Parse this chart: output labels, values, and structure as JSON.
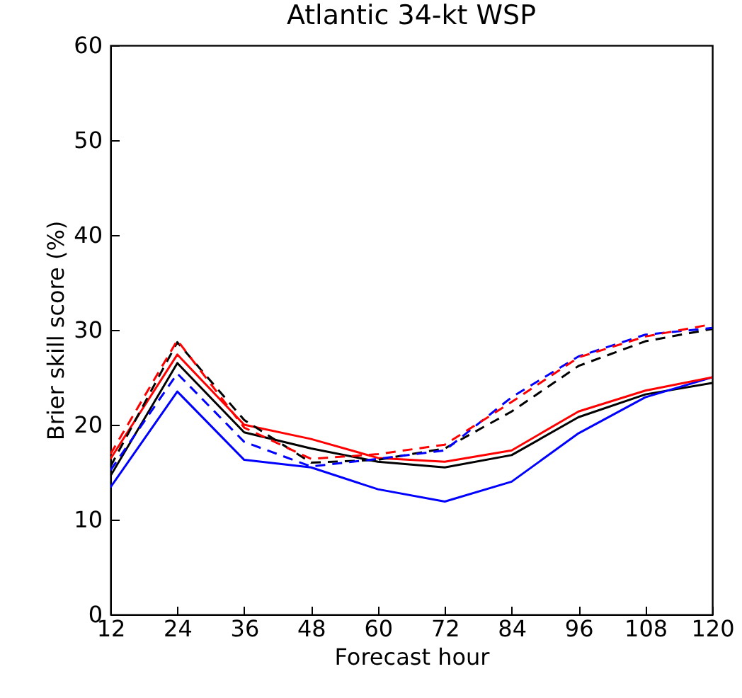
{
  "chart_data": {
    "type": "line",
    "title": "Atlantic 34-kt WSP",
    "xlabel": "Forecast hour",
    "ylabel": "Brier skill score (%)",
    "x": [
      12,
      24,
      36,
      48,
      60,
      72,
      84,
      96,
      108,
      120
    ],
    "series": [
      {
        "color": "#000000",
        "line_style": "solid",
        "values": [
          14.6,
          26.5,
          19.2,
          17.5,
          16.1,
          15.5,
          16.8,
          20.8,
          23.2,
          24.4
        ]
      },
      {
        "color": "#0000ff",
        "line_style": "solid",
        "values": [
          13.4,
          23.5,
          16.3,
          15.5,
          13.2,
          11.9,
          14.0,
          19.1,
          22.9,
          25.0
        ]
      },
      {
        "color": "#ff0000",
        "line_style": "solid",
        "values": [
          16.4,
          27.4,
          20.0,
          18.5,
          16.5,
          16.1,
          17.3,
          21.4,
          23.6,
          25.0
        ]
      },
      {
        "color": "#000000",
        "line_style": "dashed",
        "values": [
          15.6,
          28.7,
          20.5,
          16.0,
          16.3,
          17.5,
          21.4,
          26.2,
          28.8,
          30.1
        ]
      },
      {
        "color": "#0000ff",
        "line_style": "dashed",
        "values": [
          15.2,
          25.4,
          18.2,
          15.6,
          16.4,
          17.3,
          22.9,
          27.2,
          29.5,
          30.2
        ]
      },
      {
        "color": "#ff0000",
        "line_style": "dashed",
        "values": [
          16.9,
          28.9,
          19.7,
          16.4,
          16.9,
          17.9,
          22.4,
          27.1,
          29.3,
          30.6
        ]
      }
    ],
    "xlim": [
      12,
      120
    ],
    "ylim": [
      0,
      60
    ],
    "xticks": [
      12,
      24,
      36,
      48,
      60,
      72,
      84,
      96,
      108,
      120
    ],
    "yticks": [
      0,
      10,
      20,
      30,
      40,
      50,
      60
    ],
    "grid": false
  }
}
